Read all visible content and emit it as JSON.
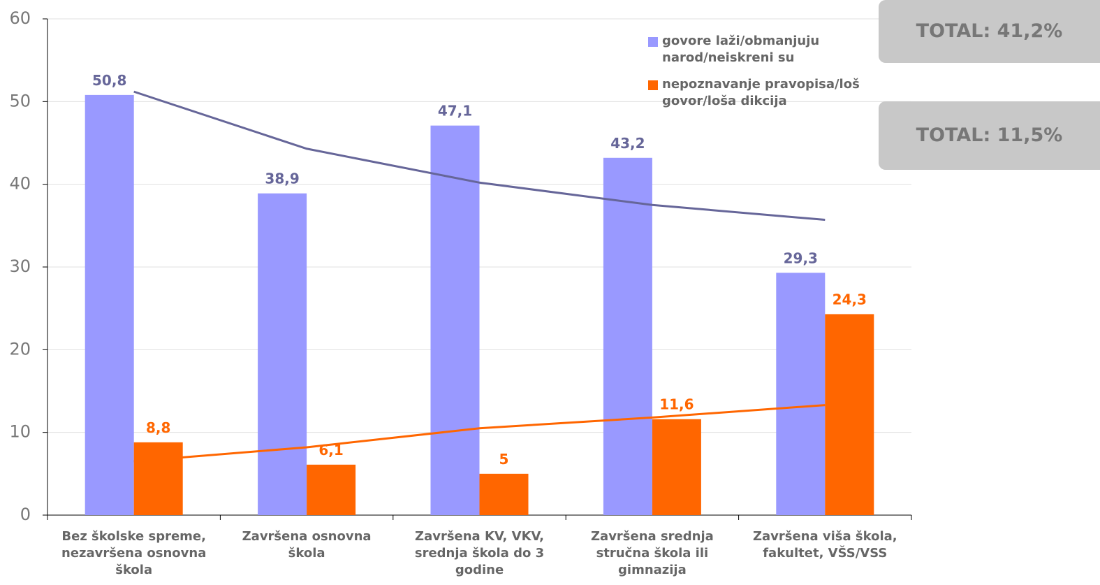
{
  "chart_data": {
    "type": "bar",
    "categories": [
      "Bez školske spreme, nezavršena osnovna škola",
      "Završena osnovna škola",
      "Završena KV, VKV, srednja škola do 3 godine",
      "Završena srednja stručna škola ili gimnazija",
      "Završena viša škola, fakultet, VŠS/VSS"
    ],
    "series": [
      {
        "name": "govore laži/obmanjuju narod/neiskreni su",
        "color": "#9999ff",
        "label_color": "#666699",
        "values": [
          50.8,
          38.9,
          47.1,
          43.2,
          29.3
        ],
        "value_labels": [
          "50,8",
          "38,9",
          "47,1",
          "43,2",
          "29,3"
        ]
      },
      {
        "name": "nepoznavanje pravopisa/loš govor/loša dikcija",
        "color": "#ff6600",
        "label_color": "#ff6600",
        "values": [
          8.8,
          6.1,
          5,
          11.6,
          24.3
        ],
        "value_labels": [
          "8,8",
          "6,1",
          "5",
          "11,6",
          "24,3"
        ]
      }
    ],
    "trendlines": [
      {
        "color": "#666699",
        "values": [
          51.2,
          44.3,
          40.2,
          37.5,
          35.7
        ]
      },
      {
        "color": "#ff6600",
        "values": [
          6.5,
          8.2,
          10.5,
          11.8,
          13.3
        ]
      }
    ],
    "annotations": [
      "TOTAL: 41,2%",
      "TOTAL: 11,5%"
    ],
    "ylim": [
      0,
      60
    ],
    "yticks": [
      0,
      10,
      20,
      30,
      40,
      50,
      60
    ],
    "grid": true
  }
}
